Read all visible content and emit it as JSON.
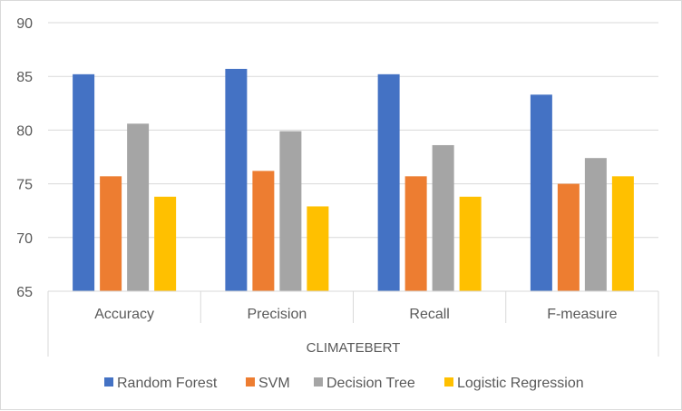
{
  "chart_data": {
    "type": "bar",
    "categories": [
      "Accuracy",
      "Precision",
      "Recall",
      "F-measure"
    ],
    "group_label": "CLIMATEBERT",
    "series": [
      {
        "name": "Random Forest",
        "color": "#4472C4",
        "values": [
          85.2,
          85.7,
          85.2,
          83.3
        ]
      },
      {
        "name": "SVM",
        "color": "#ED7D31",
        "values": [
          75.7,
          76.2,
          75.7,
          75.0
        ]
      },
      {
        "name": "Decision Tree",
        "color": "#A5A5A5",
        "values": [
          80.6,
          79.9,
          78.6,
          77.4
        ]
      },
      {
        "name": "Logistic Regression",
        "color": "#FFC000",
        "values": [
          73.8,
          72.9,
          73.8,
          75.7
        ]
      }
    ],
    "ylim": [
      65,
      90
    ],
    "yticks": [
      65,
      70,
      75,
      80,
      85,
      90
    ],
    "grid": true,
    "legend_position": "bottom"
  }
}
